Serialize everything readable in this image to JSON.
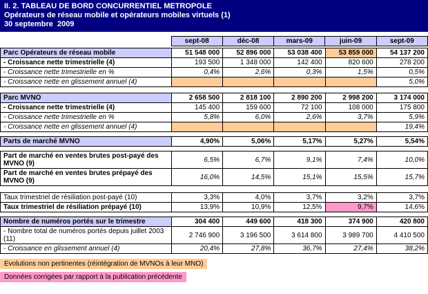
{
  "header": {
    "line1": "II. 2. TABLEAU DE BORD CONCURRENTIEL METROPOLE",
    "line2": "Opérateurs de réseau mobile et opérateurs mobiles virtuels (1)",
    "line3": "30 septembre  2009"
  },
  "columns": [
    "sept-08",
    "déc-08",
    "mars-09",
    "juin-09",
    "sept-09"
  ],
  "sections": [
    {
      "name": "parc-operateurs",
      "rows": [
        {
          "label": "Parc Opérateurs de réseau mobile",
          "label_style": "section",
          "value_style": "bold",
          "values": [
            "51 548 000",
            "52 896 000",
            "53 038 400",
            "53 859 000",
            "54 137 200"
          ],
          "highlights": [
            null,
            null,
            null,
            "orange",
            null
          ]
        },
        {
          "label": "- Croissance nette trimestrielle (4)",
          "label_style": "bold",
          "value_style": "normal",
          "values": [
            "193 500",
            "1 348 000",
            "142 400",
            "820 600",
            "278 200"
          ],
          "highlights": [
            null,
            null,
            null,
            null,
            null
          ]
        },
        {
          "label": "- Croissance nette trimestrielle en %",
          "label_style": "italic",
          "value_style": "italic",
          "values": [
            "0,4%",
            "2,6%",
            "0,3%",
            "1,5%",
            "0,5%"
          ],
          "highlights": [
            null,
            null,
            null,
            null,
            null
          ]
        },
        {
          "label": "- Croissance nette en glissement annuel (4)",
          "label_style": "italic",
          "value_style": "italic",
          "values": [
            "",
            "",
            "",
            "",
            "5,0%"
          ],
          "highlights": [
            "orange",
            "orange",
            "orange",
            "orange",
            null
          ]
        }
      ]
    },
    {
      "name": "parc-mvno",
      "rows": [
        {
          "label": "Parc MVNO",
          "label_style": "section",
          "value_style": "bold",
          "values": [
            "2 658 500",
            "2 818 100",
            "2 890 200",
            "2 998 200",
            "3 174 000"
          ],
          "highlights": [
            null,
            null,
            null,
            null,
            null
          ]
        },
        {
          "label": "- Croissance nette trimestrielle (4)",
          "label_style": "bold",
          "value_style": "normal",
          "values": [
            "145 400",
            "159 600",
            "72 100",
            "108 000",
            "175 800"
          ],
          "highlights": [
            null,
            null,
            null,
            null,
            null
          ]
        },
        {
          "label": "- Croissance nette trimestrielle en %",
          "label_style": "italic",
          "value_style": "italic",
          "values": [
            "5,8%",
            "6,0%",
            "2,6%",
            "3,7%",
            "5,9%"
          ],
          "highlights": [
            null,
            null,
            null,
            null,
            null
          ]
        },
        {
          "label": "- Croissance nette en glissement annuel (4)",
          "label_style": "italic",
          "value_style": "italic",
          "values": [
            "",
            "",
            "",
            "",
            "19,4%"
          ],
          "highlights": [
            "orange",
            "orange",
            "orange",
            "orange",
            null
          ]
        }
      ]
    },
    {
      "name": "parts-marche-mvno",
      "rows": [
        {
          "label": "Parts de marché MVNO",
          "label_style": "section",
          "value_style": "bold",
          "values": [
            "4,90%",
            "5,06%",
            "5,17%",
            "5,27%",
            "5,54%"
          ],
          "highlights": [
            null,
            null,
            null,
            null,
            null
          ]
        }
      ]
    },
    {
      "name": "ventes-brutes",
      "rows": [
        {
          "label": "Part de marché en ventes brutes post-payé des MVNO (9)",
          "label_style": "bold",
          "value_style": "italic",
          "values": [
            "6,5%",
            "6,7%",
            "9,1%",
            "7,4%",
            "10,0%"
          ],
          "highlights": [
            null,
            null,
            null,
            null,
            null
          ]
        },
        {
          "label": "Part de marché en ventes brutes prépayé des MVNO (9)",
          "label_style": "bold",
          "value_style": "italic",
          "values": [
            "16,0%",
            "14,5%",
            "15,1%",
            "15,5%",
            "15,7%"
          ],
          "highlights": [
            null,
            null,
            null,
            null,
            null
          ]
        }
      ]
    },
    {
      "name": "resiliation",
      "rows": [
        {
          "label": "Taux trimestriel de résiliation post-payé (10)",
          "label_style": "normal",
          "value_style": "normal",
          "values": [
            "3,3%",
            "4,0%",
            "3,7%",
            "3,2%",
            "3,7%"
          ],
          "highlights": [
            null,
            null,
            null,
            null,
            null
          ]
        },
        {
          "label": "Taux trimestriel de résiliation prépayé (10)",
          "label_style": "bold",
          "value_style": "normal",
          "values": [
            "13,9%",
            "10,9%",
            "12,5%",
            "9,7%",
            "14,6%"
          ],
          "highlights": [
            null,
            null,
            null,
            "pink",
            null
          ]
        }
      ]
    },
    {
      "name": "numeros-portes",
      "rows": [
        {
          "label": "Nombre de numéros portés sur le trimestre",
          "label_style": "section",
          "value_style": "bold",
          "values": [
            "304 400",
            "449 600",
            "418 300",
            "374 900",
            "420 800"
          ],
          "highlights": [
            null,
            null,
            null,
            null,
            null
          ]
        },
        {
          "label": "- Nombre total de numéros portés depuis juillet 2003 (11)",
          "label_style": "normal",
          "value_style": "normal",
          "values": [
            "2 746 900",
            "3 196 500",
            "3 614 800",
            "3 989 700",
            "4 410 500"
          ],
          "highlights": [
            null,
            null,
            null,
            null,
            null
          ]
        },
        {
          "label": "- Croissance en glissement annuel (4)",
          "label_style": "italic",
          "value_style": "italic",
          "values": [
            "20,4%",
            "27,8%",
            "36,7%",
            "27,4%",
            "38,2%"
          ],
          "highlights": [
            null,
            null,
            null,
            null,
            null
          ]
        }
      ]
    }
  ],
  "legend": [
    {
      "color": "orange",
      "text": "Evolutions non pertinentes (réintégration de MVNOs à leur MNO)"
    },
    {
      "color": "pink",
      "text": "Données corrigées par rapport à la publication précédente"
    }
  ],
  "colors": {
    "header_navy": "#000080",
    "lavender": "#CCCCFF",
    "orange_highlight": "#FFCC99",
    "pink_highlight": "#FF99CC"
  }
}
